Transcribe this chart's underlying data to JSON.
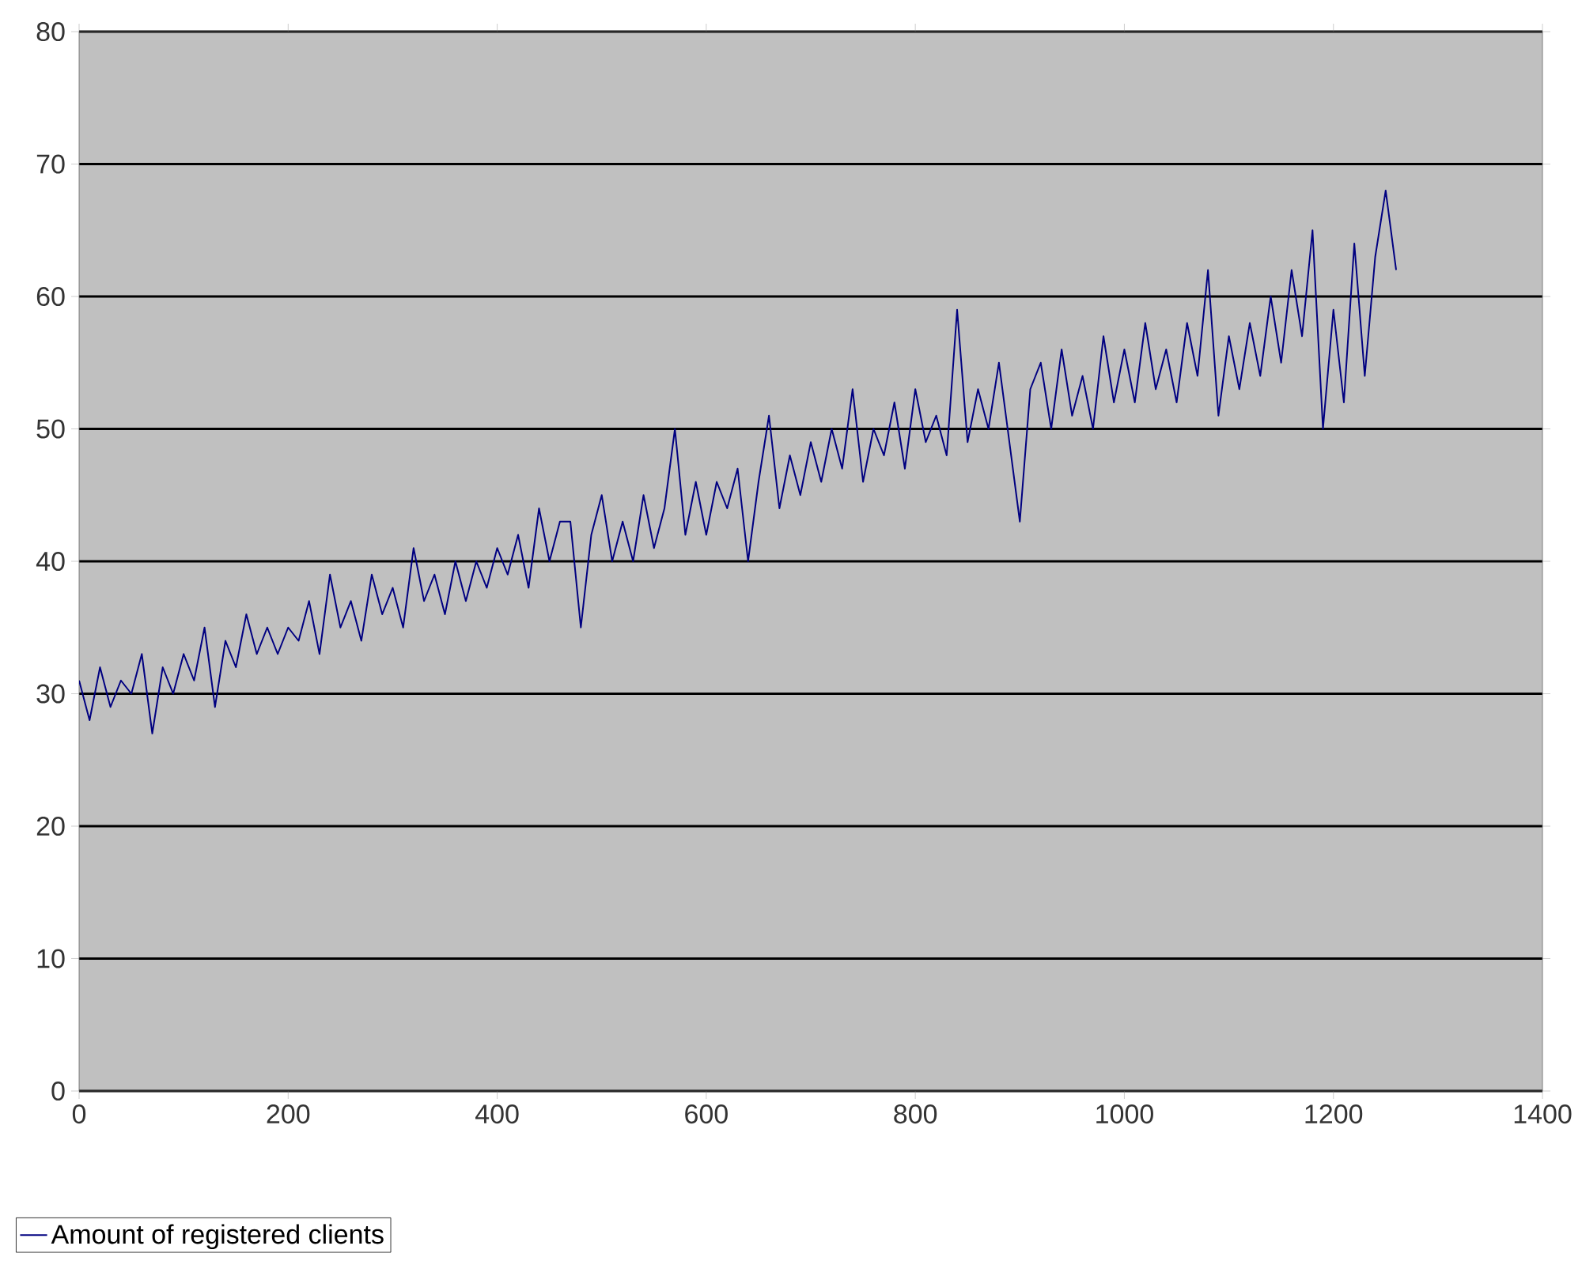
{
  "chart_data": {
    "type": "line",
    "x": [
      0,
      10,
      20,
      30,
      40,
      50,
      60,
      70,
      80,
      90,
      100,
      110,
      120,
      130,
      140,
      150,
      160,
      170,
      180,
      190,
      200,
      210,
      220,
      230,
      240,
      250,
      260,
      270,
      280,
      290,
      300,
      310,
      320,
      330,
      340,
      350,
      360,
      370,
      380,
      390,
      400,
      410,
      420,
      430,
      440,
      450,
      460,
      470,
      480,
      490,
      500,
      510,
      520,
      530,
      540,
      550,
      560,
      570,
      580,
      590,
      600,
      610,
      620,
      630,
      640,
      650,
      660,
      670,
      680,
      690,
      700,
      710,
      720,
      730,
      740,
      750,
      760,
      770,
      780,
      790,
      800,
      810,
      820,
      830,
      840,
      850,
      860,
      870,
      880,
      890,
      900,
      910,
      920,
      930,
      940,
      950,
      960,
      970,
      980,
      990,
      1000,
      1010,
      1020,
      1030,
      1040,
      1050,
      1060,
      1070,
      1080,
      1090,
      1100,
      1110,
      1120,
      1130,
      1140,
      1150,
      1160,
      1170,
      1180,
      1190,
      1200,
      1210,
      1220,
      1230,
      1240,
      1250,
      1260
    ],
    "series": [
      {
        "name": "Amount of registered clients",
        "color": "#000080",
        "values": [
          31,
          28,
          32,
          29,
          31,
          30,
          33,
          27,
          32,
          30,
          33,
          31,
          35,
          29,
          34,
          32,
          36,
          33,
          35,
          33,
          35,
          34,
          37,
          33,
          39,
          35,
          37,
          34,
          39,
          36,
          38,
          35,
          41,
          37,
          39,
          36,
          40,
          37,
          40,
          38,
          41,
          39,
          42,
          38,
          44,
          40,
          43,
          43,
          35,
          42,
          45,
          40,
          43,
          40,
          45,
          41,
          44,
          50,
          42,
          46,
          42,
          46,
          44,
          47,
          40,
          46,
          51,
          44,
          48,
          45,
          49,
          46,
          50,
          47,
          53,
          46,
          50,
          48,
          52,
          47,
          53,
          49,
          51,
          48,
          59,
          49,
          53,
          50,
          55,
          49,
          43,
          53,
          55,
          50,
          56,
          51,
          54,
          50,
          57,
          52,
          56,
          52,
          58,
          53,
          56,
          52,
          58,
          54,
          62,
          51,
          57,
          53,
          58,
          54,
          60,
          55,
          62,
          57,
          65,
          50,
          59,
          52,
          64,
          54,
          63,
          68,
          62
        ]
      }
    ],
    "xlim": [
      0,
      1400
    ],
    "ylim": [
      0,
      80
    ],
    "xticks": [
      0,
      200,
      400,
      600,
      800,
      1000,
      1200,
      1400
    ],
    "yticks": [
      0,
      10,
      20,
      30,
      40,
      50,
      60,
      70,
      80
    ],
    "grid": "y",
    "legend": "bottom left",
    "line_style": "solid"
  }
}
